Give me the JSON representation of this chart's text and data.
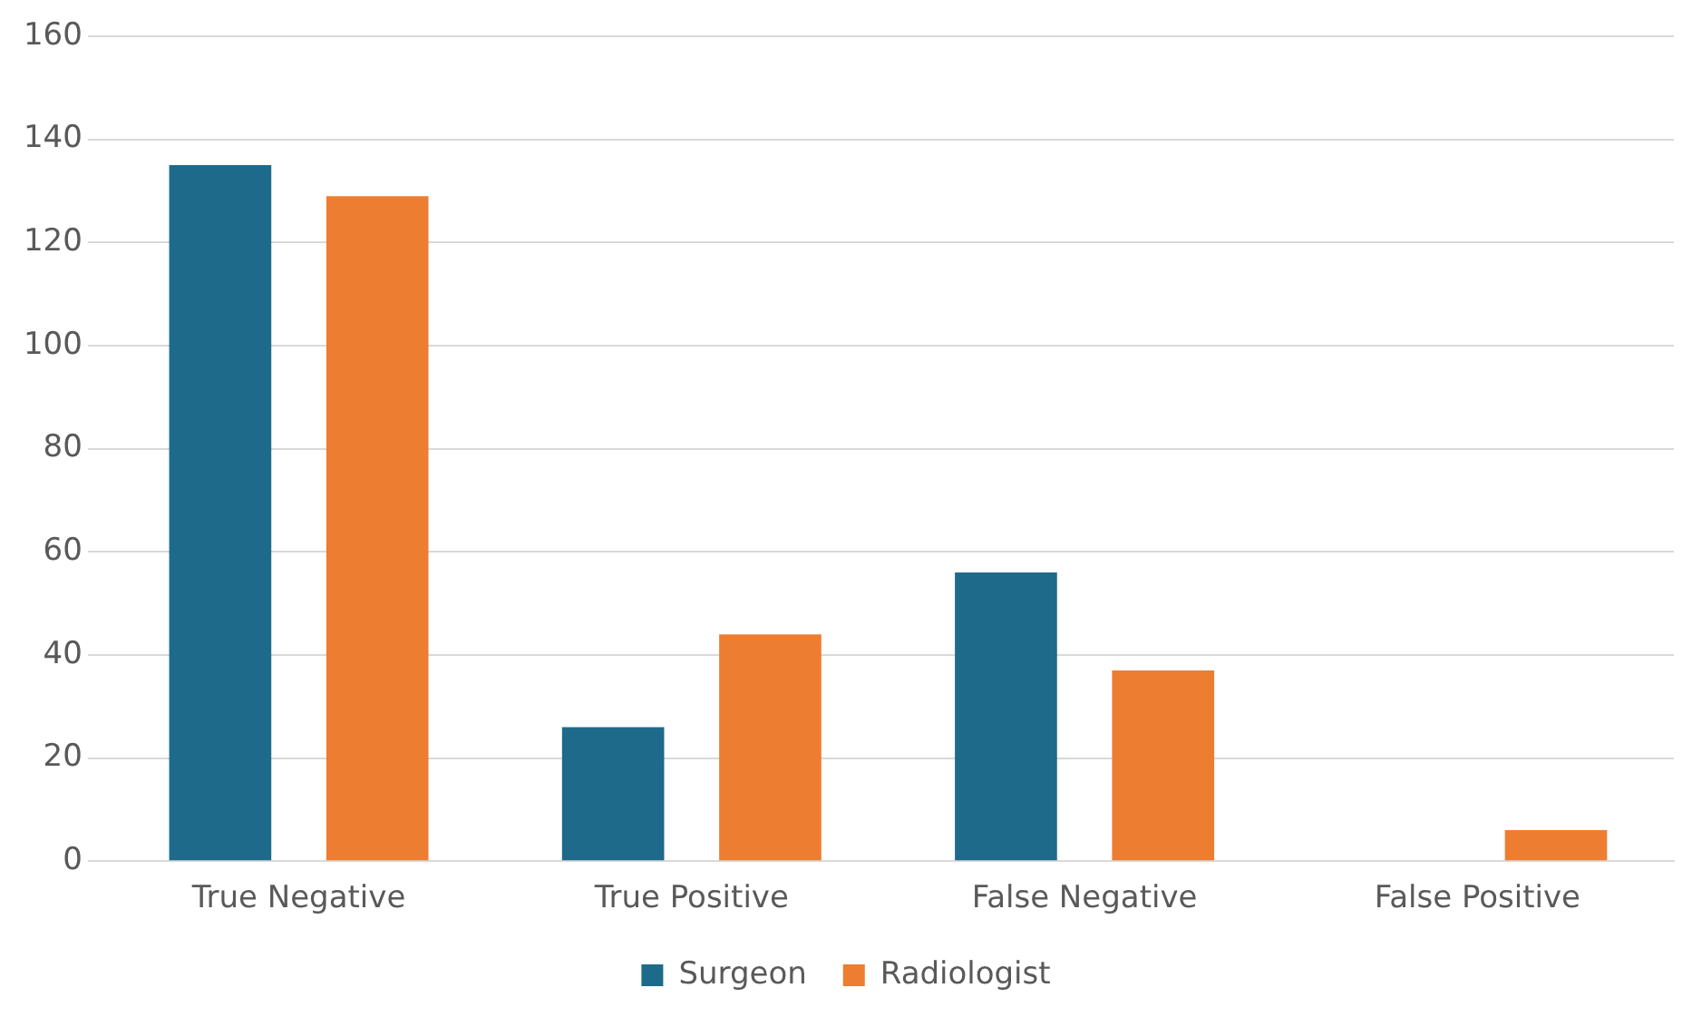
{
  "chart_data": {
    "type": "bar",
    "categories": [
      "True Negative",
      "True Positive",
      "False Negative",
      "False Positive"
    ],
    "series": [
      {
        "name": "Surgeon",
        "color": "#1d6a8b",
        "values": [
          135,
          26,
          56,
          0
        ]
      },
      {
        "name": "Radiologist",
        "color": "#ed7d31",
        "values": [
          129,
          44,
          37,
          6
        ]
      }
    ],
    "ylim": [
      0,
      160
    ],
    "yticks": [
      0,
      20,
      40,
      60,
      80,
      100,
      120,
      140,
      160
    ],
    "grid": "y",
    "legend": "bottom"
  }
}
